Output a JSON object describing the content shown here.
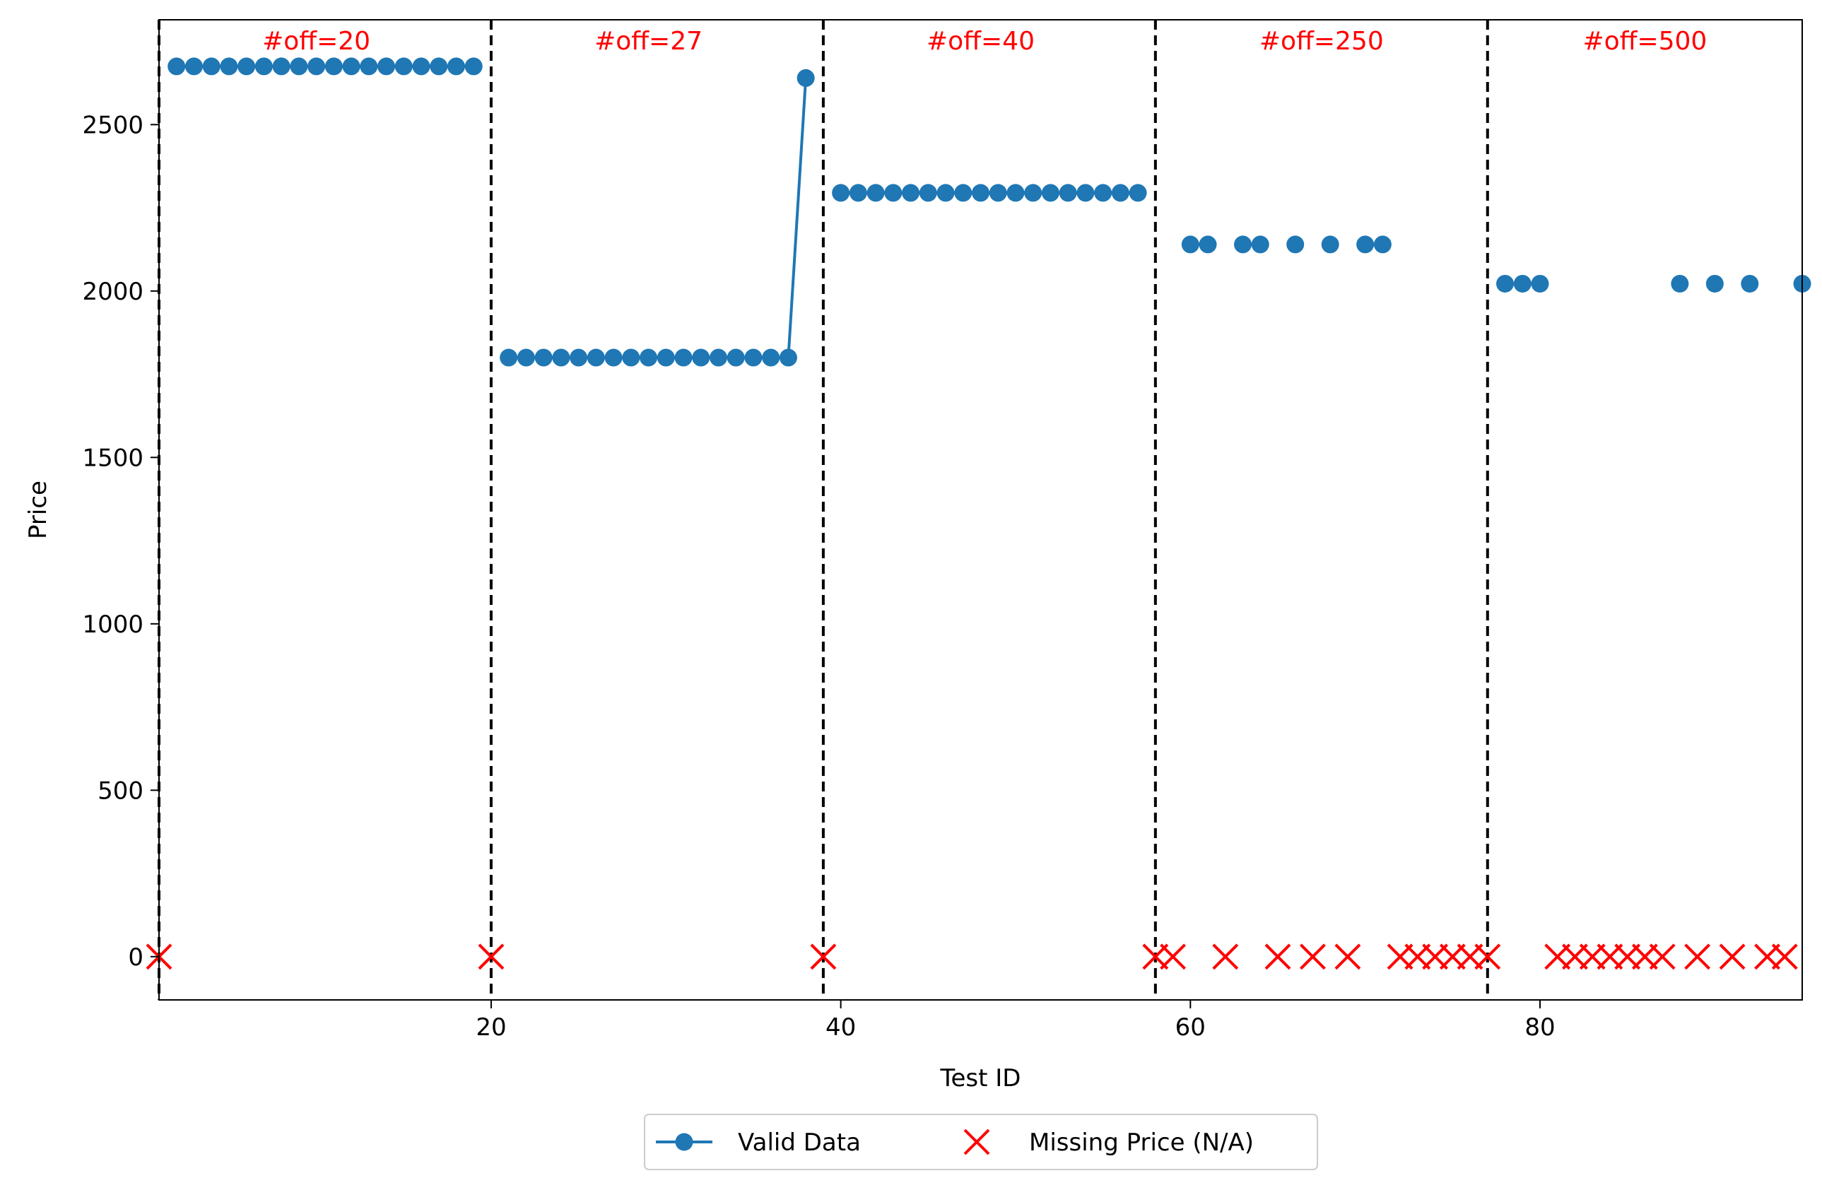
{
  "chart_data": {
    "type": "line",
    "title": "",
    "xlabel": "Test ID",
    "ylabel": "Price",
    "xlim": [
      1,
      95
    ],
    "ylim": [
      -130,
      2815
    ],
    "x_ticks": [
      20,
      40,
      60,
      80
    ],
    "y_ticks": [
      0,
      500,
      1000,
      1500,
      2000,
      2500
    ],
    "grid": false,
    "legend_placement": "bottom-center, below plot",
    "colors": {
      "valid": "#1f77b4",
      "missing": "#ff0000",
      "divider": "#000000",
      "annotation": "#ff0000"
    },
    "segments": [
      {
        "label": "#off=20",
        "label_x": 10
      },
      {
        "label": "#off=27",
        "label_x": 29
      },
      {
        "label": "#off=40",
        "label_x": 48
      },
      {
        "label": "#off=250",
        "label_x": 67.5
      },
      {
        "label": "#off=500",
        "label_x": 86
      }
    ],
    "divider_x": [
      1,
      20,
      39,
      58,
      77
    ],
    "series": [
      {
        "name": "Valid Data",
        "marker": "circle",
        "points": [
          [
            2,
            2675
          ],
          [
            3,
            2675
          ],
          [
            4,
            2675
          ],
          [
            5,
            2675
          ],
          [
            6,
            2675
          ],
          [
            7,
            2675
          ],
          [
            8,
            2675
          ],
          [
            9,
            2675
          ],
          [
            10,
            2675
          ],
          [
            11,
            2675
          ],
          [
            12,
            2675
          ],
          [
            13,
            2675
          ],
          [
            14,
            2675
          ],
          [
            15,
            2675
          ],
          [
            16,
            2675
          ],
          [
            17,
            2675
          ],
          [
            18,
            2675
          ],
          [
            19,
            2675
          ],
          null,
          [
            21,
            1800
          ],
          [
            22,
            1800
          ],
          [
            23,
            1800
          ],
          [
            24,
            1800
          ],
          [
            25,
            1800
          ],
          [
            26,
            1800
          ],
          [
            27,
            1800
          ],
          [
            28,
            1800
          ],
          [
            29,
            1800
          ],
          [
            30,
            1800
          ],
          [
            31,
            1800
          ],
          [
            32,
            1800
          ],
          [
            33,
            1800
          ],
          [
            34,
            1800
          ],
          [
            35,
            1800
          ],
          [
            36,
            1800
          ],
          [
            37,
            1800
          ],
          [
            38,
            2640
          ],
          null,
          [
            40,
            2295
          ],
          [
            41,
            2295
          ],
          [
            42,
            2295
          ],
          [
            43,
            2295
          ],
          [
            44,
            2295
          ],
          [
            45,
            2295
          ],
          [
            46,
            2295
          ],
          [
            47,
            2295
          ],
          [
            48,
            2295
          ],
          [
            49,
            2295
          ],
          [
            50,
            2295
          ],
          [
            51,
            2295
          ],
          [
            52,
            2295
          ],
          [
            53,
            2295
          ],
          [
            54,
            2295
          ],
          [
            55,
            2295
          ],
          [
            56,
            2295
          ],
          [
            57,
            2295
          ],
          null,
          [
            60,
            2140
          ],
          [
            61,
            2140
          ],
          null,
          [
            63,
            2140
          ],
          [
            64,
            2140
          ],
          null,
          [
            66,
            2140
          ],
          null,
          [
            68,
            2140
          ],
          null,
          [
            70,
            2140
          ],
          [
            71,
            2140
          ],
          null,
          [
            78,
            2022
          ],
          [
            79,
            2022
          ],
          [
            80,
            2022
          ],
          null,
          [
            88,
            2022
          ],
          null,
          [
            90,
            2022
          ],
          null,
          [
            92,
            2022
          ],
          null,
          [
            95,
            2022
          ]
        ]
      },
      {
        "name": "Missing Price (N/A)",
        "marker": "x",
        "points": [
          [
            1,
            0
          ],
          [
            20,
            0
          ],
          [
            39,
            0
          ],
          [
            58,
            0
          ],
          [
            59,
            0
          ],
          [
            62,
            0
          ],
          [
            65,
            0
          ],
          [
            67,
            0
          ],
          [
            69,
            0
          ],
          [
            72,
            0
          ],
          [
            73,
            0
          ],
          [
            74,
            0
          ],
          [
            75,
            0
          ],
          [
            76,
            0
          ],
          [
            77,
            0
          ],
          [
            81,
            0
          ],
          [
            82,
            0
          ],
          [
            83,
            0
          ],
          [
            84,
            0
          ],
          [
            85,
            0
          ],
          [
            86,
            0
          ],
          [
            87,
            0
          ],
          [
            89,
            0
          ],
          [
            91,
            0
          ],
          [
            93,
            0
          ],
          [
            94,
            0
          ]
        ]
      }
    ]
  }
}
